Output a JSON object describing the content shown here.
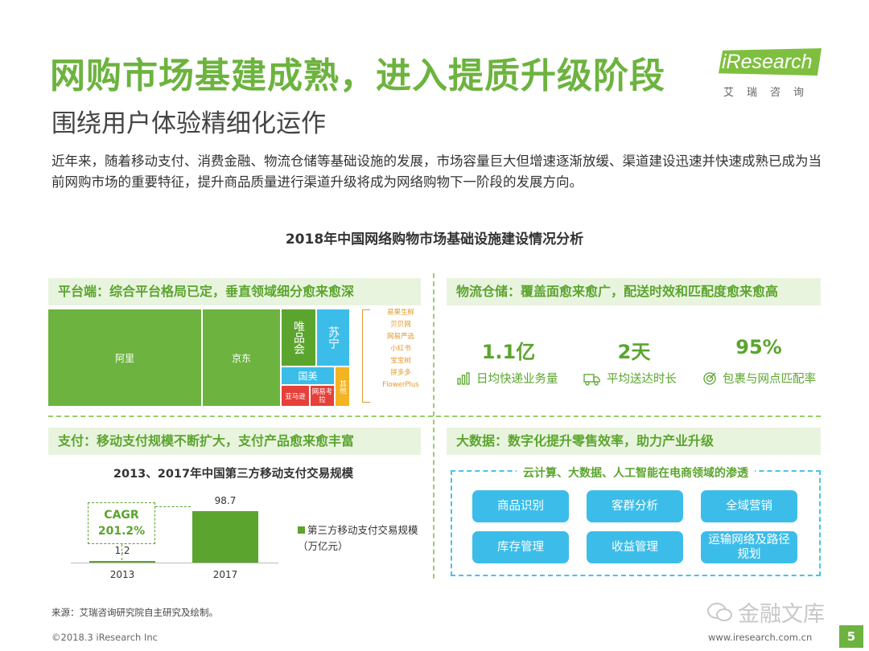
{
  "header": {
    "title": "网购市场基建成熟，进入提质升级阶段",
    "subtitle": "围绕用户体验精细化运作",
    "logo_text": "iResearch",
    "logo_cn": "艾瑞咨询"
  },
  "intro": "近年来，随着移动支付、消费金融、物流仓储等基础设施的发展，市场容量巨大但增速逐渐放缓、渠道建设迅速并快速成熟已成为当前网购市场的重要特征，提升商品质量进行渠道升级将成为网络购物下一阶段的发展方向。",
  "chart_title": "2018年中国网络购物市场基础设施建设情况分析",
  "platform": {
    "header": "平台端：综合平台格局已定，垂直领域细分愈来愈深",
    "blocks": {
      "ali": "阿里",
      "jd": "京东",
      "vip": "唯品会",
      "suning": "苏宁",
      "gome": "国美",
      "amazon": "亚马逊",
      "netease_kaola": "网易考拉",
      "mogu": "其他"
    },
    "vertical_list": [
      "易果生鲜",
      "贝贝网",
      "网易严选",
      "小红书",
      "宝宝树",
      "拼多多",
      "FlowerPlus"
    ],
    "colors": {
      "green": "#6db33f",
      "green_dark": "#5ba52e",
      "blue": "#3cbde9",
      "red": "#e5403a",
      "yellow": "#f3b324",
      "orange": "#e39a2a"
    }
  },
  "logistics": {
    "header": "物流仓储：覆盖面愈来愈广，配送时效和匹配度愈来愈高",
    "stats": [
      {
        "value": "1.1亿",
        "label": "日均快递业务量",
        "icon": "bar-chart-icon"
      },
      {
        "value": "2天",
        "label": "平均送达时长",
        "icon": "delivery-truck-icon"
      },
      {
        "value": "95%",
        "label": "包裹与网点匹配率",
        "icon": "target-icon"
      }
    ]
  },
  "payment": {
    "header": "支付：移动支付规模不断扩大，支付产品愈来愈丰富",
    "cagr_label": "CAGR",
    "cagr_value": "201.2%",
    "legend": "第三方移动支付交易规模（万亿元）"
  },
  "chart_data": {
    "type": "bar",
    "title": "2013、2017年中国第三方移动支付交易规模",
    "categories": [
      "2013",
      "2017"
    ],
    "series": [
      {
        "name": "第三方移动支付交易规模（万亿元）",
        "values": [
          1.2,
          98.7
        ]
      }
    ],
    "ylim": [
      0,
      110
    ],
    "grid": false,
    "legend": "right",
    "annotations": [
      "CAGR 201.2%"
    ]
  },
  "bigdata": {
    "header": "大数据：数字化提升零售效率，助力产业升级",
    "caption": "云计算、大数据、人工智能在电商领域的渗透",
    "buttons": [
      "商品识别",
      "客群分析",
      "全域营销",
      "库存管理",
      "收益管理",
      "运输网络及路径规划"
    ]
  },
  "footer": {
    "source": "来源：艾瑞咨询研究院自主研究及绘制。",
    "copyright": "©2018.3 iResearch Inc",
    "url": "www.iresearch.com.cn",
    "page": "5",
    "watermark": "金融文库"
  }
}
